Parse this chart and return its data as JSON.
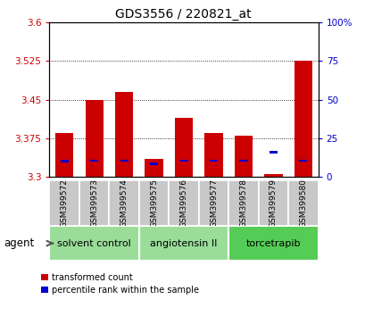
{
  "title": "GDS3556 / 220821_at",
  "samples": [
    "GSM399572",
    "GSM399573",
    "GSM399574",
    "GSM399575",
    "GSM399576",
    "GSM399577",
    "GSM399578",
    "GSM399579",
    "GSM399580"
  ],
  "red_values": [
    3.385,
    3.45,
    3.465,
    3.335,
    3.415,
    3.385,
    3.38,
    3.305,
    3.525
  ],
  "blue_values": [
    10.0,
    10.5,
    10.5,
    8.5,
    10.5,
    10.5,
    10.5,
    16.0,
    10.5
  ],
  "ymin": 3.3,
  "ymax": 3.6,
  "yticks": [
    3.3,
    3.375,
    3.45,
    3.525,
    3.6
  ],
  "ytick_labels": [
    "3.3",
    "3.375",
    "3.45",
    "3.525",
    "3.6"
  ],
  "right_yticks": [
    0,
    25,
    50,
    75,
    100
  ],
  "right_ytick_labels": [
    "0",
    "25",
    "50",
    "75",
    "100%"
  ],
  "bar_width": 0.6,
  "red_color": "#cc0000",
  "blue_color": "#0000cc",
  "groups": [
    {
      "label": "solvent control",
      "samples": [
        0,
        1,
        2
      ],
      "color": "#99dd99"
    },
    {
      "label": "angiotensin II",
      "samples": [
        3,
        4,
        5
      ],
      "color": "#99dd99"
    },
    {
      "label": "torcetrapib",
      "samples": [
        6,
        7,
        8
      ],
      "color": "#55cc55"
    }
  ],
  "agent_label": "agent",
  "legend_red": "transformed count",
  "legend_blue": "percentile rank within the sample",
  "title_fontsize": 10,
  "tick_label_fontsize": 7.5,
  "sample_label_fontsize": 6.5,
  "group_label_fontsize": 8
}
